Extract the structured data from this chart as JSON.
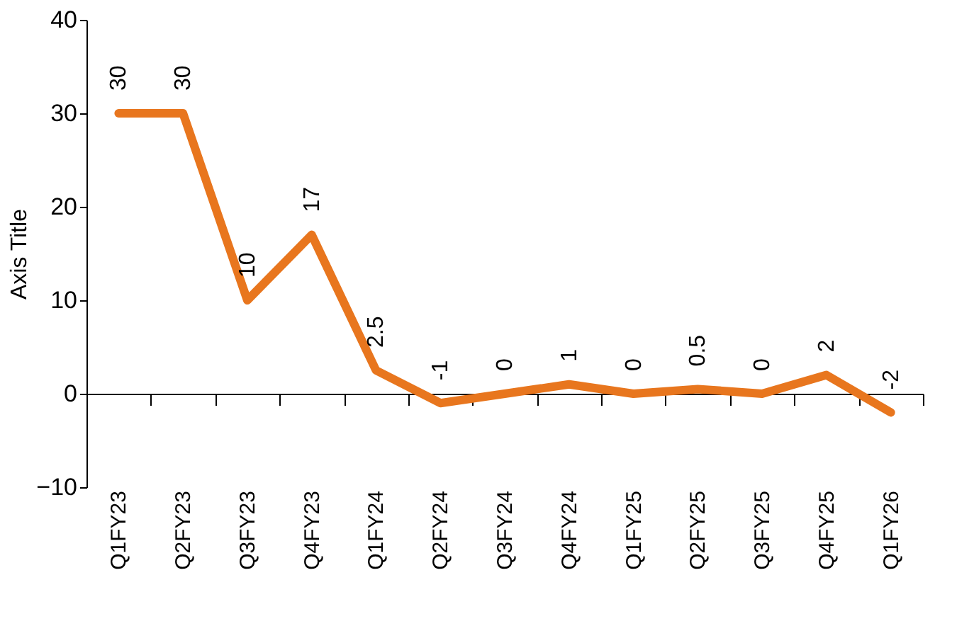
{
  "chart_data": {
    "type": "line",
    "ylabel": "Axis Title",
    "categories": [
      "Q1FY23",
      "Q2FY23",
      "Q3FY23",
      "Q4FY23",
      "Q1FY24",
      "Q2FY24",
      "Q3FY24",
      "Q4FY24",
      "Q1FY25",
      "Q2FY25",
      "Q3FY25",
      "Q4FY25",
      "Q1FY26"
    ],
    "values": [
      30,
      30,
      10,
      17,
      2.5,
      -1,
      0,
      1,
      0,
      0.5,
      0,
      2,
      -2
    ],
    "color": "#e8761e",
    "ylim": [
      -10,
      40
    ],
    "yticks": [
      -10,
      0,
      10,
      20,
      30,
      40
    ],
    "data_labels": true,
    "marker": "none",
    "line_style": "solid"
  }
}
